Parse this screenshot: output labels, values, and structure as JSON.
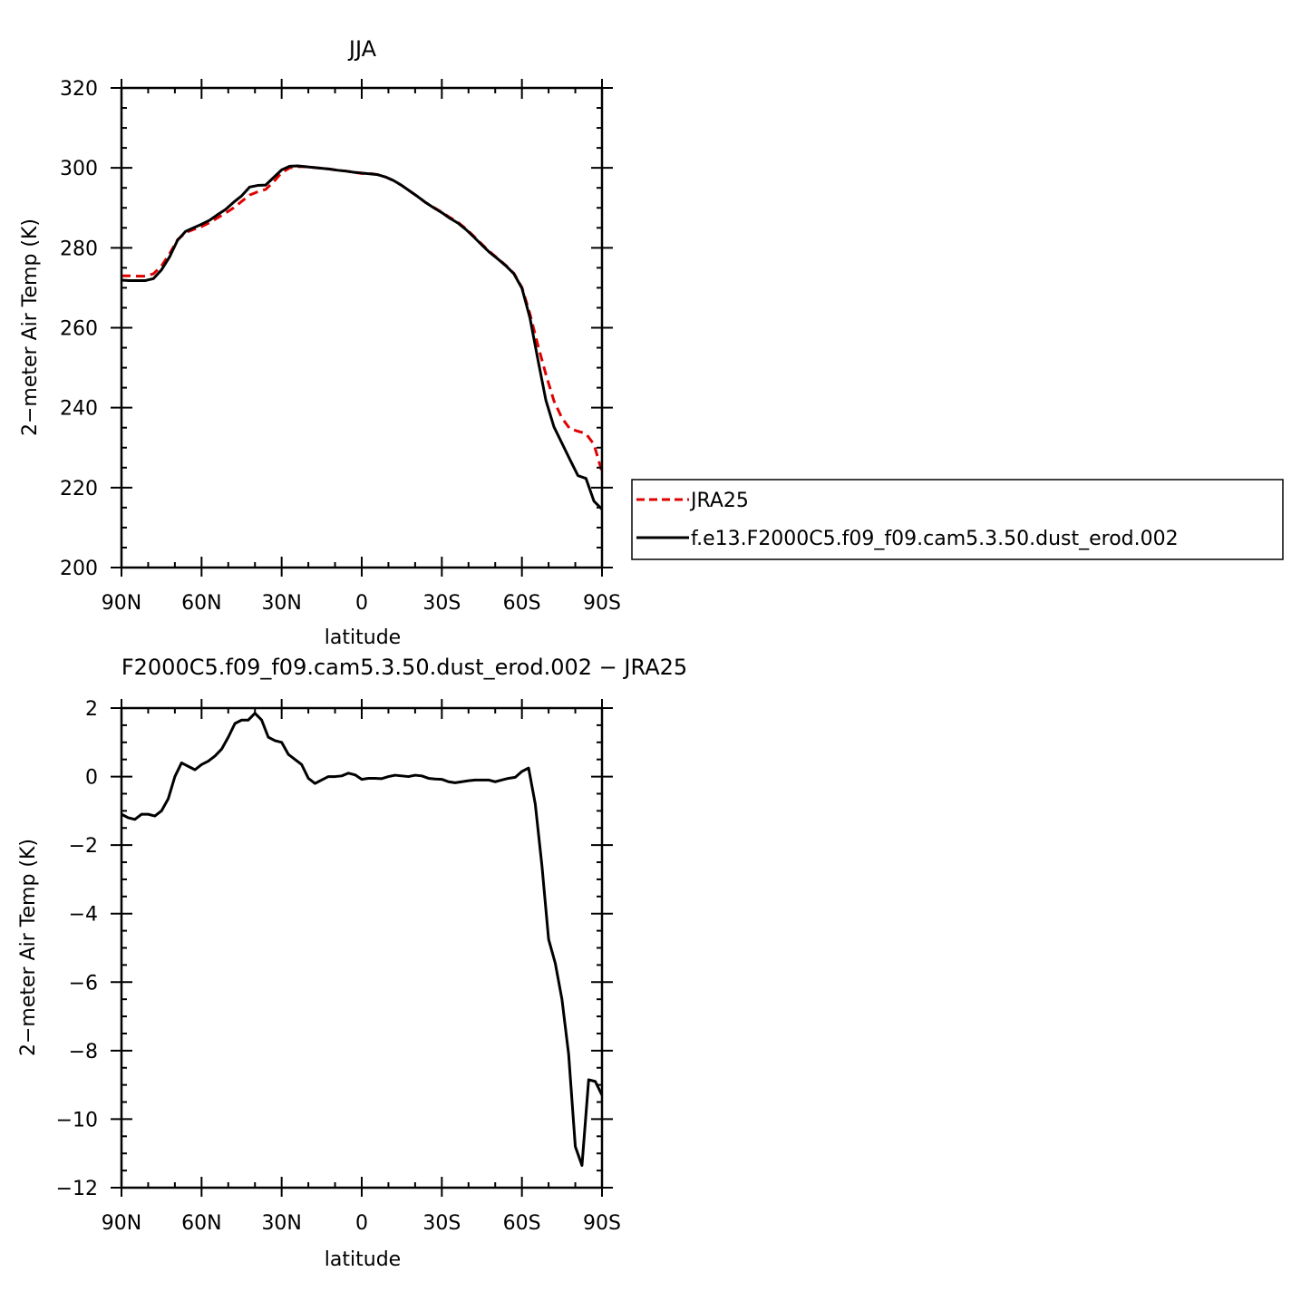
{
  "colors": {
    "jra25": "#e00000",
    "model": "#000000",
    "axis": "#000000"
  },
  "legend": {
    "placement": "right",
    "entries": [
      {
        "label": "JRA25",
        "style": "dashed",
        "color": "#e00000"
      },
      {
        "label": "f.e13.F2000C5.f09_f09.cam5.3.50.dust_erod.002",
        "style": "solid",
        "color": "#000000"
      }
    ]
  },
  "chart_data": [
    {
      "type": "line",
      "title": "JJA",
      "xlabel": "latitude",
      "ylabel": "2−meter Air Temp (K)",
      "xlim": [
        90,
        -90
      ],
      "ylim": [
        200,
        320
      ],
      "xticks": [
        90,
        60,
        30,
        0,
        -30,
        -60,
        -90
      ],
      "xtick_labels": [
        "90N",
        "60N",
        "30N",
        "0",
        "30S",
        "60S",
        "90S"
      ],
      "yticks": [
        200,
        220,
        240,
        260,
        280,
        300,
        320
      ],
      "ytick_labels": [
        "200",
        "220",
        "240",
        "260",
        "280",
        "300",
        "320"
      ],
      "grid": false,
      "series": [
        {
          "name": "JRA25",
          "style": "dashed",
          "x": [
            90,
            87,
            84,
            81,
            78,
            75,
            72,
            69,
            66,
            63,
            60,
            57,
            54,
            51,
            48,
            45,
            42,
            39,
            36,
            33,
            30,
            27,
            24,
            21,
            18,
            15,
            12,
            9,
            6,
            3,
            0,
            -3,
            -6,
            -9,
            -12,
            -15,
            -18,
            -21,
            -24,
            -27,
            -30,
            -33,
            -36,
            -39,
            -42,
            -45,
            -48,
            -51,
            -54,
            -57,
            -60,
            -63,
            -66,
            -69,
            -72,
            -75,
            -78,
            -81,
            -84,
            -87,
            -90
          ],
          "y": [
            273,
            273,
            272.9,
            272.9,
            273.5,
            275.5,
            278.5,
            282,
            283.8,
            284.6,
            285.3,
            286.3,
            287.5,
            288.7,
            290,
            291.6,
            293.2,
            294,
            294.6,
            296.5,
            298.8,
            300,
            300.3,
            300.3,
            300.1,
            299.9,
            299.7,
            299.4,
            299.2,
            298.9,
            298.6,
            298.6,
            298.3,
            297.7,
            296.8,
            295.6,
            294.2,
            292.8,
            291.3,
            290.1,
            288.9,
            287.6,
            286.4,
            284.8,
            282.9,
            280.9,
            279,
            277.3,
            275.6,
            273.6,
            270.1,
            263.5,
            255.6,
            248.3,
            241.7,
            237.4,
            234.7,
            234.1,
            233.5,
            230.8,
            223.9
          ]
        },
        {
          "name": "f.e13.F2000C5.f09_f09.cam5.3.50.dust_erod.002",
          "style": "solid",
          "x": [
            90,
            87,
            84,
            81,
            78,
            75,
            72,
            69,
            66,
            63,
            60,
            57,
            54,
            51,
            48,
            45,
            42,
            39,
            36,
            33,
            30,
            27,
            24,
            21,
            18,
            15,
            12,
            9,
            6,
            3,
            0,
            -3,
            -6,
            -9,
            -12,
            -15,
            -18,
            -21,
            -24,
            -27,
            -30,
            -33,
            -36,
            -39,
            -42,
            -45,
            -48,
            -51,
            -54,
            -57,
            -60,
            -63,
            -66,
            -69,
            -72,
            -75,
            -78,
            -81,
            -84,
            -87,
            -90
          ],
          "y": [
            271.9,
            271.8,
            271.8,
            271.8,
            272.3,
            274.5,
            277.7,
            281.9,
            284.1,
            285,
            285.9,
            286.9,
            288.3,
            289.6,
            291.4,
            293,
            295.2,
            295.6,
            295.7,
            297.6,
            299.5,
            300.4,
            300.5,
            300.3,
            300.1,
            299.9,
            299.7,
            299.4,
            299.2,
            298.9,
            298.7,
            298.5,
            298.3,
            297.7,
            296.8,
            295.6,
            294.2,
            292.8,
            291.3,
            290,
            288.8,
            287.4,
            286.2,
            284.6,
            282.7,
            280.7,
            278.8,
            277.2,
            275.5,
            273.5,
            269.9,
            262.5,
            252,
            241.8,
            235.2,
            231.1,
            227,
            223,
            222.3,
            216.6,
            214.6
          ]
        }
      ]
    },
    {
      "type": "line",
      "title": "F2000C5.f09_f09.cam5.3.50.dust_erod.002 − JRA25",
      "xlabel": "latitude",
      "ylabel": "2−meter Air Temp (K)",
      "xlim": [
        90,
        -90
      ],
      "ylim": [
        -12,
        2
      ],
      "xticks": [
        90,
        60,
        30,
        0,
        -30,
        -60,
        -90
      ],
      "xtick_labels": [
        "90N",
        "60N",
        "30N",
        "0",
        "30S",
        "60S",
        "90S"
      ],
      "yticks": [
        -12,
        -10,
        -8,
        -6,
        -4,
        -2,
        0,
        2
      ],
      "ytick_labels": [
        "−12",
        "−10",
        "−8",
        "−6",
        "−4",
        "−2",
        "0",
        "2"
      ],
      "grid": false,
      "series": [
        {
          "style": "solid",
          "x": [
            90,
            87.5,
            85,
            82.5,
            80,
            77.5,
            75,
            72.5,
            70,
            67.5,
            65,
            62.5,
            60,
            57.5,
            55,
            52.5,
            50,
            47.5,
            45,
            42.5,
            40,
            37.5,
            35,
            32.5,
            30,
            27.5,
            25,
            22.5,
            20,
            17.5,
            15,
            12.5,
            10,
            7.5,
            5,
            2.5,
            0,
            -2.5,
            -5,
            -7.5,
            -10,
            -12.5,
            -15,
            -17.5,
            -20,
            -22.5,
            -25,
            -27.5,
            -30,
            -32.5,
            -35,
            -37.5,
            -40,
            -42.5,
            -45,
            -47.5,
            -50,
            -52.5,
            -55,
            -57.5,
            -60,
            -62.5,
            -65,
            -67.5,
            -70,
            -72.5,
            -75,
            -77.5,
            -80,
            -82.5,
            -85,
            -87.5,
            -90
          ],
          "y": [
            -1.1,
            -1.2,
            -1.25,
            -1.1,
            -1.1,
            -1.15,
            -1.0,
            -0.65,
            0.0,
            0.4,
            0.3,
            0.2,
            0.35,
            0.45,
            0.6,
            0.8,
            1.15,
            1.55,
            1.65,
            1.65,
            1.85,
            1.65,
            1.15,
            1.05,
            1.0,
            0.65,
            0.5,
            0.35,
            -0.05,
            -0.2,
            -0.1,
            0.0,
            0.0,
            0.02,
            0.1,
            0.05,
            -0.08,
            -0.05,
            -0.05,
            -0.06,
            0.0,
            0.04,
            0.02,
            0.0,
            0.04,
            0.02,
            -0.05,
            -0.07,
            -0.08,
            -0.15,
            -0.18,
            -0.15,
            -0.12,
            -0.1,
            -0.1,
            -0.1,
            -0.15,
            -0.1,
            -0.05,
            -0.02,
            0.15,
            0.25,
            -0.8,
            -2.6,
            -4.75,
            -5.45,
            -6.5,
            -8.1,
            -10.8,
            -11.35,
            -8.85,
            -8.9,
            -9.3
          ]
        }
      ]
    }
  ]
}
